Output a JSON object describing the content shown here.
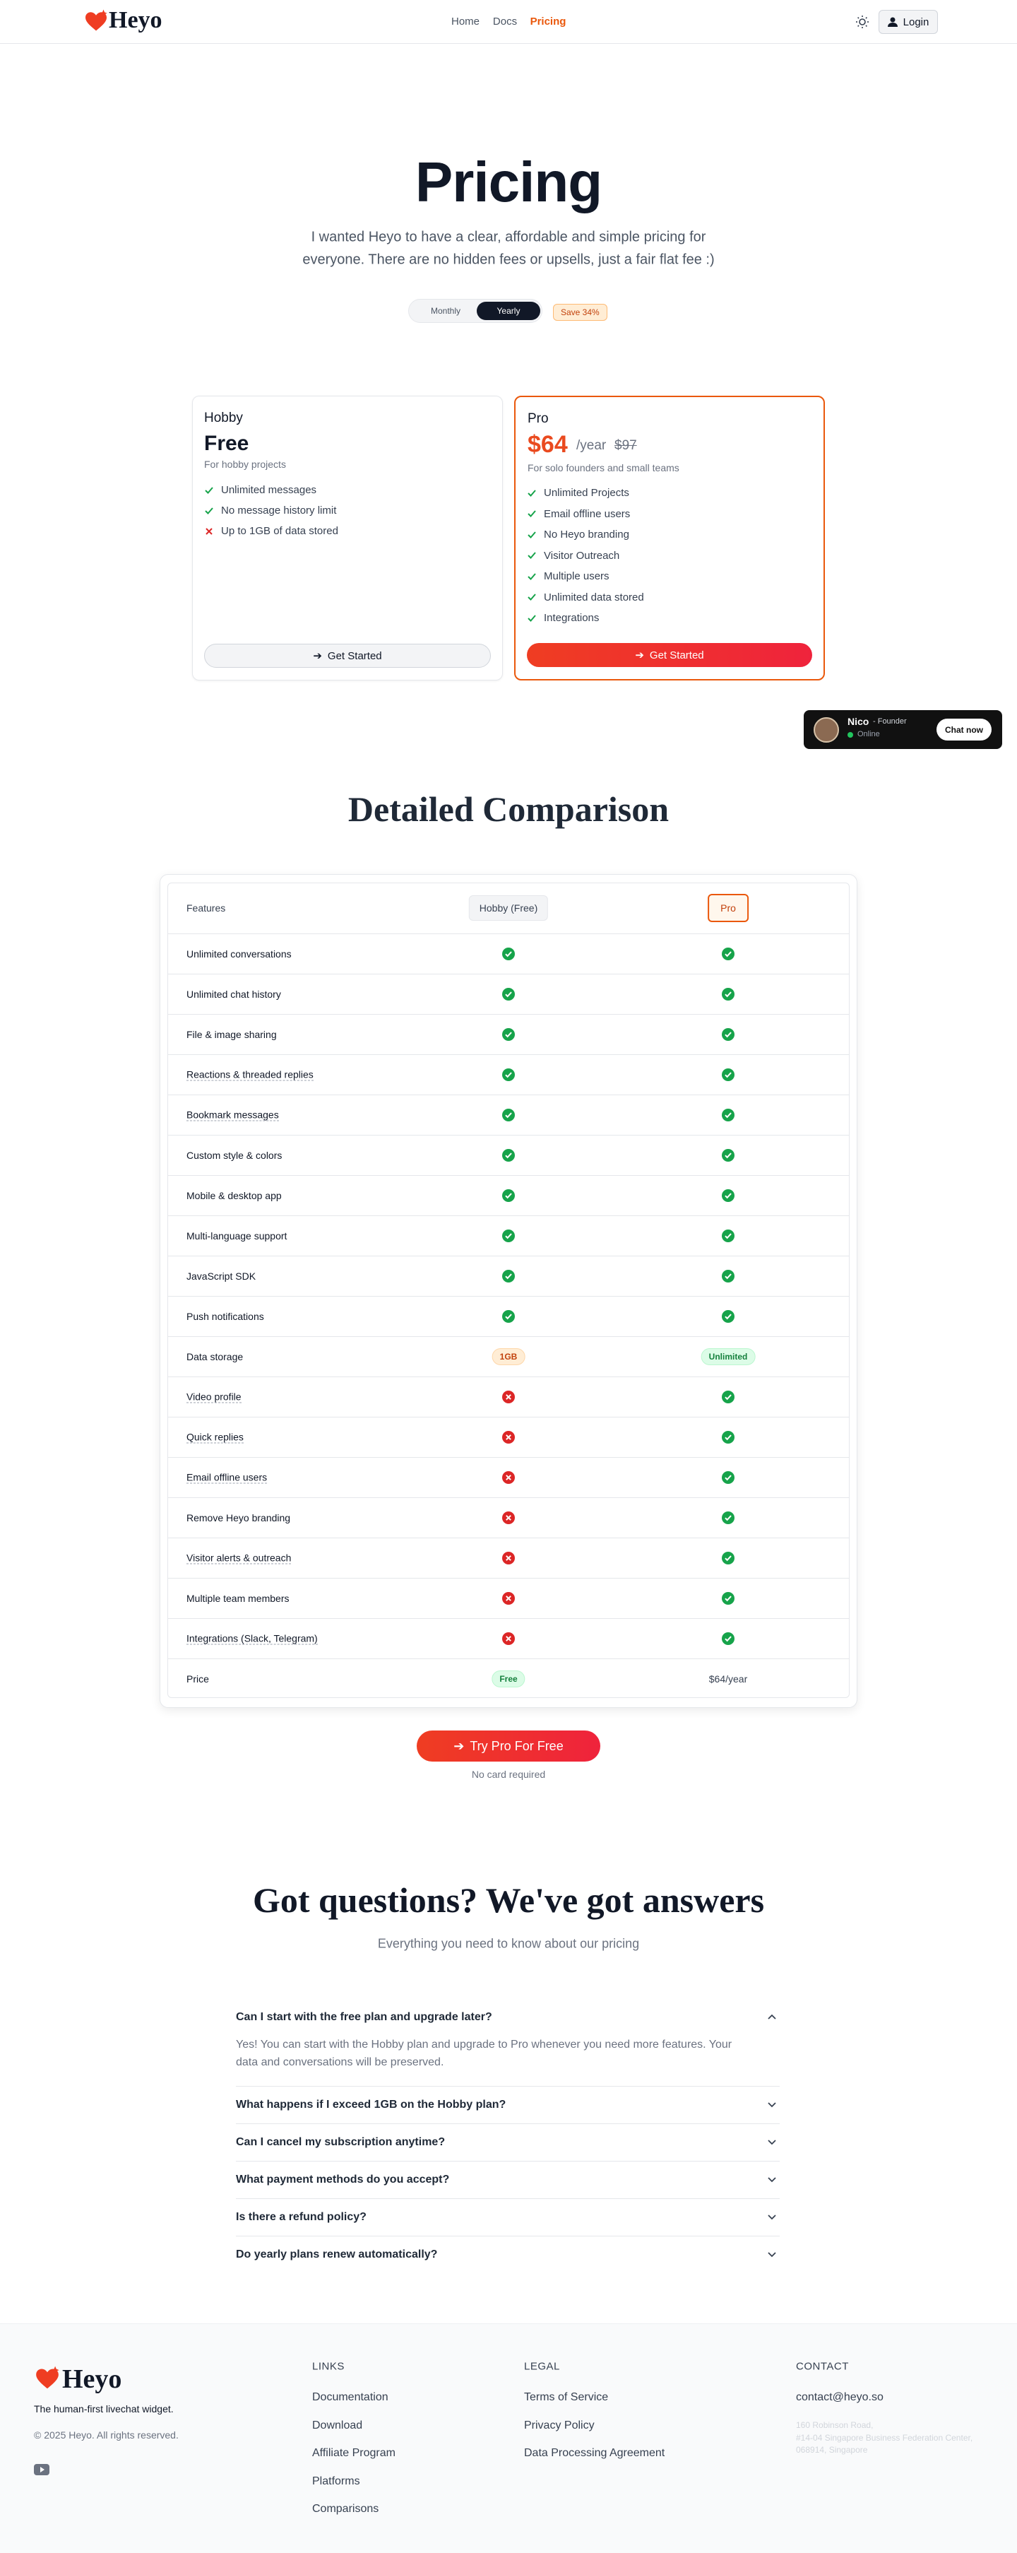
{
  "nav": {
    "logo": "Heyo",
    "links": [
      "Home",
      "Docs",
      "Pricing"
    ],
    "login": "Login"
  },
  "hero": {
    "title": "Pricing",
    "subtitle_lines": [
      "I wanted Heyo to have a clear, affordable and simple pricing for",
      "everyone. There are no hidden fees or upsells, just a fair flat fee :)"
    ],
    "toggle": [
      "Monthly",
      "Yearly"
    ],
    "save": "Save 34%"
  },
  "plans": {
    "hobby": {
      "name": "Hobby",
      "price": "Free",
      "desc": "For hobby projects",
      "features": [
        {
          "text": "Unlimited messages",
          "included": true
        },
        {
          "text": "No message history limit",
          "included": true
        },
        {
          "text": "Up to 1GB of data stored",
          "included": false
        }
      ],
      "button": "Get Started"
    },
    "pro": {
      "name": "Pro",
      "price": "$64",
      "period": "/year",
      "old_price": "$97",
      "desc": "For solo founders and small teams",
      "features": [
        {
          "text": "Unlimited Projects",
          "included": true
        },
        {
          "text": "Email offline users",
          "included": true
        },
        {
          "text": "No Heyo branding",
          "included": true
        },
        {
          "text": "Visitor Outreach",
          "included": true
        },
        {
          "text": "Multiple users",
          "included": true
        },
        {
          "text": "Unlimited data stored",
          "included": true
        },
        {
          "text": "Integrations",
          "included": true
        }
      ],
      "button": "Get Started"
    }
  },
  "chat_widget": {
    "name": "Nico",
    "role": "- Founder",
    "status": "Online",
    "button": "Chat now"
  },
  "comparison": {
    "title": "Detailed Comparison",
    "header": [
      "Features",
      "Hobby (Free)",
      "Pro"
    ],
    "rows": [
      {
        "feature": "Unlimited conversations",
        "hobby": true,
        "pro": true
      },
      {
        "feature": "Unlimited chat history",
        "hobby": true,
        "pro": true
      },
      {
        "feature": "File & image sharing",
        "hobby": true,
        "pro": true
      },
      {
        "feature": "Reactions & threaded replies",
        "hint": true,
        "hobby": true,
        "pro": true
      },
      {
        "feature": "Bookmark messages",
        "hint": true,
        "hobby": true,
        "pro": true
      },
      {
        "feature": "Custom style & colors",
        "hobby": true,
        "pro": true
      },
      {
        "feature": "Mobile & desktop app",
        "hobby": true,
        "pro": true
      },
      {
        "feature": "Multi-language support",
        "hobby": true,
        "pro": true
      },
      {
        "feature": "JavaScript SDK",
        "hobby": true,
        "pro": true
      },
      {
        "feature": "Push notifications",
        "hobby": true,
        "pro": true
      },
      {
        "feature": "Data storage",
        "hobby": "1GB",
        "pro": "Unlimited"
      },
      {
        "feature": "Video profile",
        "hint": true,
        "hobby": false,
        "pro": true
      },
      {
        "feature": "Quick replies",
        "hint": true,
        "hobby": false,
        "pro": true
      },
      {
        "feature": "Email offline users",
        "hint": true,
        "hobby": false,
        "pro": true
      },
      {
        "feature": "Remove Heyo branding",
        "hobby": false,
        "pro": true
      },
      {
        "feature": "Visitor alerts & outreach",
        "hint": true,
        "hobby": false,
        "pro": true
      },
      {
        "feature": "Multiple team members",
        "hobby": false,
        "pro": true
      },
      {
        "feature": "Integrations (Slack, Telegram)",
        "hint": true,
        "hobby": false,
        "pro": true
      },
      {
        "feature": "Price",
        "hobby": "Free",
        "pro": "$64/year"
      }
    ],
    "cta": "Try Pro For Free",
    "cta_note": "No card required"
  },
  "faq": {
    "title": "Got questions? We've got answers",
    "subtitle": "Everything you need to know about our pricing",
    "items": [
      {
        "q": "Can I start with the free plan and upgrade later?",
        "a_lines": [
          "Yes! You can start with the Hobby plan and upgrade to Pro whenever you need more features. Your",
          "data and conversations will be preserved."
        ]
      },
      {
        "q": "What happens if I exceed 1GB on the Hobby plan?"
      },
      {
        "q": "Can I cancel my subscription anytime?"
      },
      {
        "q": "What payment methods do you accept?"
      },
      {
        "q": "Is there a refund policy?"
      },
      {
        "q": "Do yearly plans renew automatically?"
      }
    ]
  },
  "footer": {
    "logo": "Heyo",
    "tagline": "The human-first livechat widget.",
    "copyright": "© 2025 Heyo. All rights reserved.",
    "links": {
      "title": "LINKS",
      "items": [
        "Documentation",
        "Download",
        "Affiliate Program",
        "Platforms",
        "Comparisons"
      ]
    },
    "legal": {
      "title": "LEGAL",
      "items": [
        "Terms of Service",
        "Privacy Policy",
        "Data Processing Agreement"
      ]
    },
    "contact": {
      "title": "CONTACT",
      "email": "contact@heyo.so",
      "address": [
        "160 Robinson Road,",
        "#14-04 Singapore Business Federation Center,",
        "068914, Singapore"
      ]
    }
  }
}
